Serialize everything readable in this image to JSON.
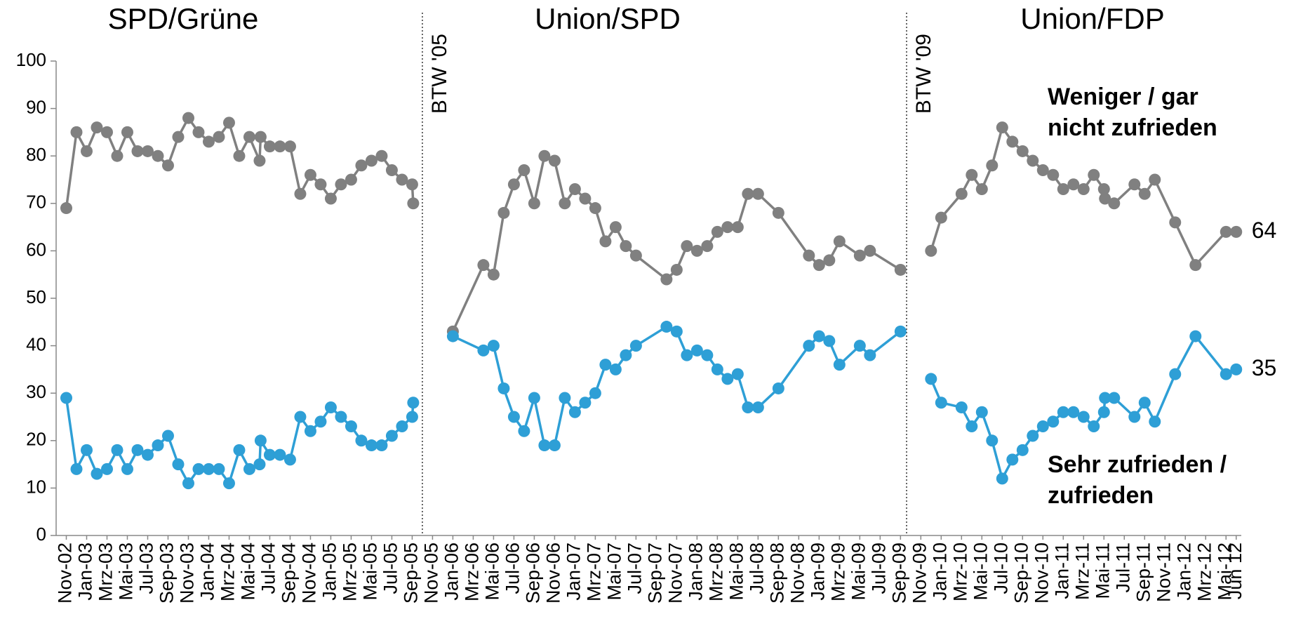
{
  "chart_data": {
    "type": "line",
    "periods": [
      {
        "name": "SPD/Grüne"
      },
      {
        "name": "Union/SPD"
      },
      {
        "name": "Union/FDP"
      }
    ],
    "dividers": [
      {
        "label": "BTW '05",
        "x": 35
      },
      {
        "label": "BTW '09",
        "x": 82.6
      }
    ],
    "x": [
      0,
      1,
      2,
      3,
      4,
      5,
      6,
      7,
      8,
      9,
      10,
      11,
      12,
      13,
      14,
      15,
      16,
      17,
      18,
      19,
      19.1,
      20,
      21,
      22,
      23,
      24,
      25,
      26,
      27,
      28,
      29,
      30,
      31,
      32,
      33,
      34,
      34.1,
      36,
      38,
      41,
      42,
      43,
      44,
      45,
      46,
      47,
      48,
      49,
      50,
      51,
      52,
      53,
      54,
      55,
      56,
      59,
      60,
      61,
      62,
      63,
      64,
      65,
      66,
      67,
      68,
      70,
      73,
      74,
      75,
      76,
      78,
      79,
      82,
      83,
      85,
      86,
      88,
      89,
      90,
      91,
      92,
      93,
      94,
      95,
      96,
      97,
      98,
      99,
      100,
      101,
      102,
      102.1,
      103,
      105,
      106,
      107,
      109,
      111,
      114,
      115
    ],
    "series": [
      {
        "name": "Weniger / gar nicht zufrieden",
        "color": "#808080",
        "values": [
          69,
          85,
          81,
          86,
          85,
          80,
          85,
          81,
          81,
          80,
          78,
          84,
          88,
          85,
          83,
          84,
          87,
          80,
          84,
          79,
          84,
          82,
          82,
          82,
          72,
          76,
          74,
          71,
          74,
          75,
          78,
          79,
          80,
          77,
          75,
          74,
          70,
          null,
          43,
          57,
          55,
          68,
          74,
          77,
          70,
          80,
          79,
          70,
          73,
          71,
          69,
          62,
          65,
          61,
          59,
          54,
          56,
          61,
          60,
          61,
          64,
          65,
          65,
          72,
          72,
          68,
          59,
          57,
          58,
          62,
          59,
          60,
          56,
          null,
          60,
          67,
          72,
          76,
          73,
          78,
          86,
          83,
          81,
          79,
          77,
          76,
          73,
          74,
          73,
          76,
          73,
          71,
          70,
          74,
          72,
          75,
          66,
          57,
          64,
          64
        ]
      },
      {
        "name": "Sehr zufrieden / zufrieden",
        "color": "#2e9fd6",
        "values": [
          29,
          14,
          18,
          13,
          14,
          18,
          14,
          18,
          17,
          19,
          21,
          15,
          11,
          14,
          14,
          14,
          11,
          18,
          14,
          15,
          20,
          17,
          17,
          16,
          25,
          22,
          24,
          27,
          25,
          23,
          20,
          19,
          19,
          21,
          23,
          25,
          28,
          null,
          42,
          39,
          40,
          31,
          25,
          22,
          29,
          19,
          19,
          29,
          26,
          28,
          30,
          36,
          35,
          38,
          40,
          44,
          43,
          38,
          39,
          38,
          35,
          33,
          34,
          27,
          27,
          31,
          40,
          42,
          41,
          36,
          40,
          38,
          43,
          null,
          33,
          28,
          27,
          23,
          26,
          20,
          12,
          16,
          18,
          21,
          23,
          24,
          26,
          26,
          25,
          23,
          26,
          29,
          29,
          25,
          28,
          24,
          34,
          42,
          34,
          35
        ]
      }
    ],
    "xlim": [
      -1,
      115.5
    ],
    "xticks": [
      {
        "value": 0,
        "label": "Nov-02"
      },
      {
        "value": 2,
        "label": "Jan-03"
      },
      {
        "value": 4,
        "label": "Mrz-03"
      },
      {
        "value": 6,
        "label": "Mai-03"
      },
      {
        "value": 8,
        "label": "Jul-03"
      },
      {
        "value": 10,
        "label": "Sep-03"
      },
      {
        "value": 12,
        "label": "Nov-03"
      },
      {
        "value": 14,
        "label": "Jan-04"
      },
      {
        "value": 16,
        "label": "Mrz-04"
      },
      {
        "value": 18,
        "label": "Mai-04"
      },
      {
        "value": 20,
        "label": "Jul-04"
      },
      {
        "value": 22,
        "label": "Sep-04"
      },
      {
        "value": 24,
        "label": "Nov-04"
      },
      {
        "value": 26,
        "label": "Jan-05"
      },
      {
        "value": 28,
        "label": "Mrz-05"
      },
      {
        "value": 30,
        "label": "Mai-05"
      },
      {
        "value": 32,
        "label": "Jul-05"
      },
      {
        "value": 34,
        "label": "Sep-05"
      },
      {
        "value": 36,
        "label": "Nov-05"
      },
      {
        "value": 38,
        "label": "Jan-06"
      },
      {
        "value": 40,
        "label": "Mrz-06"
      },
      {
        "value": 42,
        "label": "Mai-06"
      },
      {
        "value": 44,
        "label": "Jul-06"
      },
      {
        "value": 46,
        "label": "Sep-06"
      },
      {
        "value": 48,
        "label": "Nov-06"
      },
      {
        "value": 50,
        "label": "Jan-07"
      },
      {
        "value": 52,
        "label": "Mrz-07"
      },
      {
        "value": 54,
        "label": "Mai-07"
      },
      {
        "value": 56,
        "label": "Jul-07"
      },
      {
        "value": 58,
        "label": "Sep-07"
      },
      {
        "value": 60,
        "label": "Nov-07"
      },
      {
        "value": 62,
        "label": "Jan-08"
      },
      {
        "value": 64,
        "label": "Mrz-08"
      },
      {
        "value": 66,
        "label": "Mai-08"
      },
      {
        "value": 68,
        "label": "Jul-08"
      },
      {
        "value": 70,
        "label": "Sep-08"
      },
      {
        "value": 72,
        "label": "Nov-08"
      },
      {
        "value": 74,
        "label": "Jan-09"
      },
      {
        "value": 76,
        "label": "Mrz-09"
      },
      {
        "value": 78,
        "label": "Mai-09"
      },
      {
        "value": 80,
        "label": "Jul-09"
      },
      {
        "value": 82,
        "label": "Sep-09"
      },
      {
        "value": 84,
        "label": "Nov-09"
      },
      {
        "value": 86,
        "label": "Jan-10"
      },
      {
        "value": 88,
        "label": "Mrz-10"
      },
      {
        "value": 90,
        "label": "Mai-10"
      },
      {
        "value": 92,
        "label": "Jul-10"
      },
      {
        "value": 94,
        "label": "Sep-10"
      },
      {
        "value": 96,
        "label": "Nov-10"
      },
      {
        "value": 98,
        "label": "Jan-11"
      },
      {
        "value": 100,
        "label": "Mrz-11"
      },
      {
        "value": 102,
        "label": "Mai-11"
      },
      {
        "value": 104,
        "label": "Jul-11"
      },
      {
        "value": 106,
        "label": "Sep-11"
      },
      {
        "value": 108,
        "label": "Nov-11"
      },
      {
        "value": 110,
        "label": "Jan-12"
      },
      {
        "value": 112,
        "label": "Mrz-12"
      },
      {
        "value": 114,
        "label": "Mai-12"
      },
      {
        "value": 115,
        "label": "Jun 12"
      }
    ],
    "ylim": [
      0,
      100
    ],
    "yticks": [
      0,
      10,
      20,
      30,
      40,
      50,
      60,
      70,
      80,
      90,
      100
    ],
    "grid": false
  }
}
